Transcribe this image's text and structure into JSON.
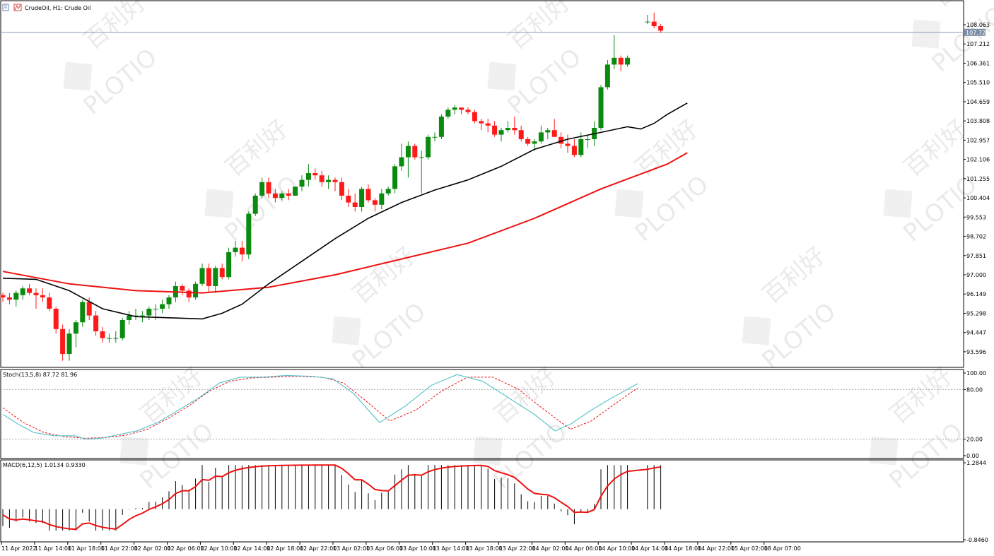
{
  "header": {
    "title": "CrudeOil, H1:  Crude Oil"
  },
  "watermark": {
    "brand": "PLOTIO",
    "cn": "百利好"
  },
  "colors": {
    "bull": "#0b8a10",
    "bear": "#ff1a1a",
    "sma_fast": "#000000",
    "sma_slow": "#ee1111",
    "stoch_main": "#5fc4cc",
    "stoch_signal": "#ee1111",
    "macd_hist": "#000000",
    "macd_signal": "#ee1111"
  },
  "chart_data": [
    {
      "type": "candlestick",
      "title": "CrudeOil, H1:  Crude Oil",
      "ylim": [
        93.0,
        109.0
      ],
      "yticks": [
        "108.063",
        "107.212",
        "106.361",
        "105.510",
        "104.659",
        "103.808",
        "102.957",
        "102.106",
        "101.255",
        "100.404",
        "99.553",
        "98.702",
        "97.851",
        "97.000",
        "96.149",
        "95.298",
        "94.447",
        "93.596"
      ],
      "current_price": "107.725",
      "xticks": [
        "11 Apr 2022",
        "11 Apr 14:00",
        "11 Apr 18:00",
        "11 Apr 22:00",
        "12 Apr 02:00",
        "12 Apr 06:00",
        "12 Apr 10:00",
        "12 Apr 14:00",
        "12 Apr 18:00",
        "12 Apr 22:00",
        "13 Apr 02:00",
        "13 Apr 06:00",
        "13 Apr 10:00",
        "13 Apr 14:00",
        "13 Apr 18:00",
        "13 Apr 22:00",
        "14 Apr 02:00",
        "14 Apr 06:00",
        "14 Apr 10:00",
        "14 Apr 14:00",
        "14 Apr 18:00",
        "14 Apr 22:00",
        "15 Apr 02:00",
        "18 Apr 07:00"
      ],
      "candles": [
        [
          96.1,
          96.2,
          95.8,
          96.0
        ],
        [
          96.0,
          96.2,
          95.7,
          95.9
        ],
        [
          95.9,
          96.3,
          95.6,
          96.2
        ],
        [
          96.1,
          96.5,
          95.9,
          96.4
        ],
        [
          96.4,
          96.6,
          96.1,
          96.2
        ],
        [
          96.2,
          96.4,
          95.5,
          96.1
        ],
        [
          96.1,
          96.4,
          95.8,
          96.0
        ],
        [
          96.0,
          96.2,
          95.4,
          95.5
        ],
        [
          95.5,
          95.6,
          94.4,
          94.6
        ],
        [
          94.6,
          94.8,
          93.2,
          93.5
        ],
        [
          93.5,
          94.6,
          93.2,
          94.4
        ],
        [
          94.4,
          95.0,
          93.8,
          94.9
        ],
        [
          94.9,
          95.9,
          94.7,
          95.8
        ],
        [
          95.8,
          96.0,
          95.0,
          95.2
        ],
        [
          95.2,
          95.4,
          94.3,
          94.5
        ],
        [
          94.5,
          94.7,
          94.0,
          94.2
        ],
        [
          94.2,
          94.4,
          94.0,
          94.2
        ],
        [
          94.2,
          94.5,
          94.0,
          94.2
        ],
        [
          94.2,
          95.1,
          94.1,
          95.0
        ],
        [
          95.0,
          95.4,
          94.8,
          95.2
        ],
        [
          95.2,
          95.5,
          95.0,
          95.2
        ],
        [
          95.2,
          95.4,
          94.9,
          95.2
        ],
        [
          95.2,
          95.6,
          95.0,
          95.5
        ],
        [
          95.5,
          95.7,
          95.0,
          95.5
        ],
        [
          95.5,
          95.9,
          95.3,
          95.7
        ],
        [
          95.7,
          96.1,
          95.5,
          96.0
        ],
        [
          96.0,
          96.7,
          95.8,
          96.5
        ],
        [
          96.5,
          96.6,
          96.1,
          96.3
        ],
        [
          96.3,
          96.4,
          95.8,
          96.0
        ],
        [
          96.0,
          96.7,
          95.9,
          96.6
        ],
        [
          96.6,
          97.5,
          96.5,
          97.3
        ],
        [
          97.3,
          97.5,
          96.2,
          96.5
        ],
        [
          96.5,
          97.4,
          96.2,
          97.3
        ],
        [
          97.3,
          97.5,
          96.8,
          96.9
        ],
        [
          96.9,
          98.2,
          96.8,
          98.0
        ],
        [
          98.0,
          98.5,
          97.8,
          98.2
        ],
        [
          98.2,
          98.5,
          97.6,
          97.9
        ],
        [
          97.9,
          99.8,
          97.7,
          99.7
        ],
        [
          99.7,
          100.6,
          99.6,
          100.5
        ],
        [
          100.5,
          101.3,
          100.4,
          101.1
        ],
        [
          101.1,
          101.3,
          100.4,
          100.6
        ],
        [
          100.6,
          100.8,
          100.2,
          100.4
        ],
        [
          100.4,
          100.7,
          100.3,
          100.6
        ],
        [
          100.6,
          100.8,
          100.3,
          100.5
        ],
        [
          100.5,
          100.9,
          100.5,
          100.9
        ],
        [
          100.9,
          101.4,
          100.7,
          101.2
        ],
        [
          101.2,
          101.9,
          100.9,
          101.5
        ],
        [
          101.5,
          101.7,
          101.2,
          101.4
        ],
        [
          101.4,
          101.6,
          100.9,
          101.1
        ],
        [
          101.1,
          101.4,
          100.8,
          101.2
        ],
        [
          101.2,
          101.3,
          100.7,
          101.1
        ],
        [
          101.1,
          101.3,
          100.3,
          100.5
        ],
        [
          100.5,
          100.8,
          100.0,
          100.2
        ],
        [
          100.2,
          100.6,
          99.8,
          100.0
        ],
        [
          100.0,
          100.9,
          99.8,
          100.8
        ],
        [
          100.8,
          101.0,
          100.2,
          100.3
        ],
        [
          100.3,
          100.4,
          99.8,
          100.1
        ],
        [
          100.1,
          100.8,
          99.9,
          100.6
        ],
        [
          100.6,
          100.9,
          100.5,
          100.8
        ],
        [
          100.8,
          101.9,
          100.6,
          101.8
        ],
        [
          101.8,
          102.8,
          101.6,
          102.2
        ],
        [
          102.2,
          102.9,
          101.3,
          102.7
        ],
        [
          102.7,
          102.8,
          102.1,
          102.2
        ],
        [
          102.2,
          102.5,
          100.6,
          102.2
        ],
        [
          102.2,
          103.2,
          102.1,
          103.1
        ],
        [
          103.1,
          103.3,
          102.9,
          103.1
        ],
        [
          103.1,
          104.1,
          103.0,
          104.0
        ],
        [
          104.0,
          104.4,
          103.9,
          104.3
        ],
        [
          104.3,
          104.5,
          104.1,
          104.4
        ],
        [
          104.4,
          104.4,
          104.1,
          104.3
        ],
        [
          104.3,
          104.4,
          104.1,
          104.2
        ],
        [
          104.2,
          104.3,
          103.7,
          103.8
        ],
        [
          103.8,
          103.9,
          103.4,
          103.7
        ],
        [
          103.7,
          103.9,
          103.3,
          103.6
        ],
        [
          103.6,
          103.8,
          103.1,
          103.2
        ],
        [
          103.2,
          103.5,
          102.9,
          103.4
        ],
        [
          103.4,
          103.8,
          103.3,
          103.5
        ],
        [
          103.5,
          104.0,
          103.2,
          103.4
        ],
        [
          103.4,
          103.6,
          102.9,
          103.0
        ],
        [
          103.0,
          103.1,
          102.7,
          102.8
        ],
        [
          102.8,
          103.0,
          102.5,
          102.9
        ],
        [
          102.9,
          103.6,
          102.8,
          103.3
        ],
        [
          103.3,
          103.5,
          103.0,
          103.4
        ],
        [
          103.4,
          103.9,
          103.2,
          103.1
        ],
        [
          103.1,
          103.3,
          102.6,
          102.8
        ],
        [
          102.8,
          103.2,
          102.4,
          102.7
        ],
        [
          102.7,
          103.0,
          102.2,
          102.3
        ],
        [
          102.3,
          103.3,
          102.2,
          103.0
        ],
        [
          103.0,
          103.2,
          102.6,
          103.0
        ],
        [
          103.0,
          103.8,
          102.7,
          103.5
        ],
        [
          103.5,
          105.4,
          103.4,
          105.3
        ],
        [
          105.3,
          106.5,
          105.2,
          106.3
        ],
        [
          106.3,
          107.6,
          106.1,
          106.6
        ],
        [
          106.6,
          106.7,
          106.0,
          106.3
        ],
        [
          106.3,
          106.7,
          106.2,
          106.6
        ],
        null,
        null,
        [
          108.2,
          108.5,
          108.1,
          108.2
        ],
        [
          108.2,
          108.6,
          107.9,
          108.0
        ],
        [
          108.0,
          108.1,
          107.7,
          107.8
        ]
      ],
      "sma_fast": [
        [
          0,
          96.85
        ],
        [
          5,
          96.8
        ],
        [
          10,
          96.3
        ],
        [
          15,
          95.5
        ],
        [
          20,
          95.15
        ],
        [
          25,
          95.1
        ],
        [
          30,
          95.05
        ],
        [
          33,
          95.3
        ],
        [
          36,
          95.7
        ],
        [
          40,
          96.6
        ],
        [
          45,
          97.6
        ],
        [
          50,
          98.6
        ],
        [
          55,
          99.5
        ],
        [
          60,
          100.2
        ],
        [
          65,
          100.75
        ],
        [
          70,
          101.2
        ],
        [
          75,
          101.8
        ],
        [
          80,
          102.55
        ],
        [
          85,
          103.0
        ],
        [
          90,
          103.3
        ],
        [
          94,
          103.55
        ],
        [
          96,
          103.45
        ],
        [
          98,
          103.7
        ],
        [
          100,
          104.1
        ],
        [
          103,
          104.6
        ]
      ],
      "sma_slow": [
        [
          0,
          97.15
        ],
        [
          10,
          96.6
        ],
        [
          20,
          96.3
        ],
        [
          30,
          96.2
        ],
        [
          40,
          96.45
        ],
        [
          50,
          97.0
        ],
        [
          60,
          97.7
        ],
        [
          70,
          98.4
        ],
        [
          80,
          99.5
        ],
        [
          90,
          100.8
        ],
        [
          100,
          101.9
        ],
        [
          103,
          102.4
        ]
      ],
      "stochastic": {
        "label": "Stoch(13,5,8) 87.72 81.96",
        "ylim": [
          0,
          100
        ],
        "yticks": [
          "100.00",
          "80.00",
          "20.00",
          "0.00"
        ],
        "levels": [
          80,
          20
        ],
        "main": [
          [
            0,
            50
          ],
          [
            3,
            38
          ],
          [
            6,
            28
          ],
          [
            10,
            24
          ],
          [
            14,
            24
          ],
          [
            16,
            20
          ],
          [
            19,
            21
          ],
          [
            22,
            25
          ],
          [
            26,
            30
          ],
          [
            30,
            40
          ],
          [
            34,
            55
          ],
          [
            38,
            70
          ],
          [
            42,
            88
          ],
          [
            46,
            95
          ],
          [
            50,
            95
          ],
          [
            55,
            97
          ],
          [
            60,
            96
          ],
          [
            64,
            93
          ],
          [
            68,
            75
          ],
          [
            73,
            40
          ],
          [
            78,
            60
          ],
          [
            83,
            85
          ],
          [
            88,
            98
          ],
          [
            93,
            90
          ],
          [
            98,
            70
          ],
          [
            103,
            50
          ],
          [
            107,
            30
          ],
          [
            110,
            38
          ],
          [
            114,
            55
          ],
          [
            118,
            70
          ],
          [
            123,
            87
          ]
        ],
        "signal": [
          [
            0,
            58
          ],
          [
            4,
            40
          ],
          [
            8,
            28
          ],
          [
            12,
            23
          ],
          [
            16,
            21
          ],
          [
            20,
            22
          ],
          [
            24,
            25
          ],
          [
            28,
            32
          ],
          [
            32,
            45
          ],
          [
            36,
            60
          ],
          [
            40,
            78
          ],
          [
            44,
            90
          ],
          [
            48,
            94
          ],
          [
            52,
            95
          ],
          [
            57,
            96
          ],
          [
            62,
            95
          ],
          [
            66,
            88
          ],
          [
            70,
            68
          ],
          [
            75,
            42
          ],
          [
            80,
            55
          ],
          [
            85,
            78
          ],
          [
            90,
            95
          ],
          [
            95,
            95
          ],
          [
            100,
            80
          ],
          [
            105,
            55
          ],
          [
            110,
            32
          ],
          [
            114,
            42
          ],
          [
            118,
            60
          ],
          [
            123,
            82
          ]
        ]
      },
      "macd": {
        "label": "MACD(6,12,5) 1.0134 0.9330",
        "ylim": [
          -0.846,
          1.2844
        ],
        "yticks": [
          "1.2844",
          "-0.8460"
        ]
      }
    }
  ]
}
